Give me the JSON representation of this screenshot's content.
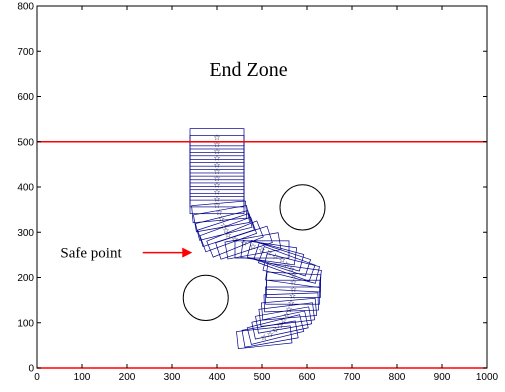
{
  "chart_data": {
    "type": "scatter",
    "title": "",
    "xlabel": "",
    "ylabel": "",
    "xlim": [
      0,
      1000
    ],
    "ylim": [
      0,
      800
    ],
    "grid": false,
    "x_ticks": [
      0,
      100,
      200,
      300,
      400,
      500,
      600,
      700,
      800,
      900,
      1000
    ],
    "y_ticks": [
      0,
      100,
      200,
      300,
      400,
      500,
      600,
      700,
      800
    ],
    "reference_lines": [
      {
        "y": 500,
        "color": "#ff0000"
      },
      {
        "y": 0,
        "color": "#ff0000"
      }
    ],
    "annotations": [
      {
        "text": "End Zone",
        "x": 470,
        "y": 645
      },
      {
        "text": "Safe point",
        "x": 120,
        "y": 255
      }
    ],
    "safe_point_arrow": {
      "from": [
        235,
        255
      ],
      "to": [
        345,
        255
      ],
      "color": "#ff0000"
    },
    "obstacles": [
      {
        "cx": 590,
        "cy": 355,
        "r": 50
      },
      {
        "cx": 375,
        "cy": 155,
        "r": 50
      }
    ],
    "path_color": "#00008b",
    "footprint_size": [
      120,
      38
    ],
    "path": [
      [
        400,
        510,
        0
      ],
      [
        400,
        495,
        0
      ],
      [
        400,
        480,
        0
      ],
      [
        400,
        465,
        0
      ],
      [
        400,
        450,
        0
      ],
      [
        400,
        435,
        0
      ],
      [
        400,
        420,
        0
      ],
      [
        400,
        405,
        0
      ],
      [
        400,
        390,
        0
      ],
      [
        400,
        375,
        0
      ],
      [
        400,
        360,
        0
      ],
      [
        405,
        345,
        5
      ],
      [
        410,
        330,
        10
      ],
      [
        415,
        315,
        14
      ],
      [
        420,
        305,
        18
      ],
      [
        425,
        295,
        20
      ],
      [
        440,
        285,
        22
      ],
      [
        460,
        277,
        18
      ],
      [
        480,
        270,
        10
      ],
      [
        500,
        262,
        0
      ],
      [
        515,
        255,
        -8
      ],
      [
        530,
        248,
        -15
      ],
      [
        545,
        240,
        -18
      ],
      [
        555,
        230,
        -20
      ],
      [
        565,
        220,
        -14
      ],
      [
        570,
        205,
        -8
      ],
      [
        570,
        190,
        -3
      ],
      [
        570,
        175,
        0
      ],
      [
        568,
        160,
        0
      ],
      [
        565,
        145,
        2
      ],
      [
        560,
        130,
        5
      ],
      [
        555,
        118,
        7
      ],
      [
        548,
        106,
        10
      ],
      [
        540,
        95,
        12
      ],
      [
        530,
        85,
        14
      ],
      [
        518,
        75,
        10
      ],
      [
        505,
        68,
        6
      ]
    ]
  }
}
